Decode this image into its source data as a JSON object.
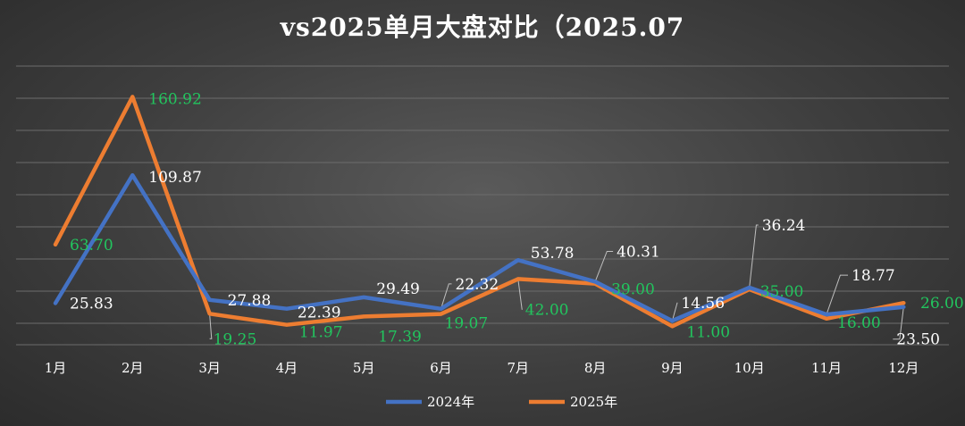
{
  "chart_data": {
    "type": "line",
    "title": "vs2025单月大盘对比（2025.07",
    "xlabel": "",
    "ylabel": "",
    "categories": [
      "1月",
      "2月",
      "3月",
      "4月",
      "5月",
      "6月",
      "7月",
      "8月",
      "9月",
      "10月",
      "11月",
      "12月"
    ],
    "series": [
      {
        "name": "2024年",
        "color": "#4472c4",
        "values": [
          25.83,
          109.87,
          27.88,
          22.39,
          29.49,
          22.32,
          53.78,
          40.31,
          14.56,
          36.24,
          18.77,
          23.5
        ],
        "labels": [
          "25.83",
          "109.87",
          "27.88",
          "22.39",
          "29.49",
          "22.32",
          "53.78",
          "40.31",
          "14.56",
          "36.24",
          "18.77",
          "23.50"
        ]
      },
      {
        "name": "2025年",
        "color": "#ed7d31",
        "values": [
          63.7,
          160.92,
          19.25,
          11.97,
          17.39,
          19.07,
          42.0,
          39.0,
          11.0,
          35.0,
          16.0,
          26.0
        ],
        "labels": [
          "63.70",
          "160.92",
          "19.25",
          "11.97",
          "17.39",
          "19.07",
          "42.00",
          "39.00",
          "11.00",
          "35.00",
          "16.00",
          "26.00"
        ]
      }
    ],
    "grid": true,
    "legend_position": "bottom"
  }
}
